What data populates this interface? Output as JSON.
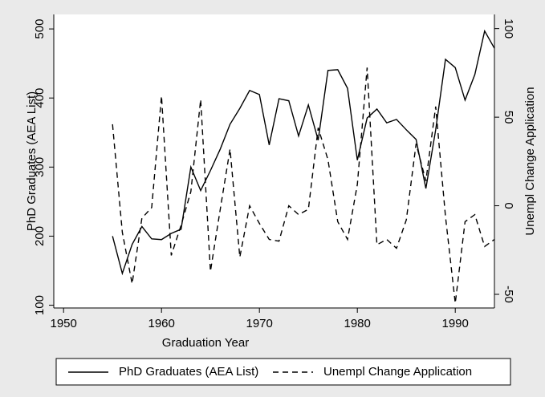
{
  "chart_data": {
    "type": "line",
    "x_label": "Graduation Year",
    "y_label": "PhD Graduates (AEA List)",
    "y2_label": "Unempl Change Application",
    "x": [
      1955,
      1956,
      1957,
      1958,
      1959,
      1960,
      1961,
      1962,
      1963,
      1964,
      1965,
      1966,
      1967,
      1968,
      1969,
      1970,
      1971,
      1972,
      1973,
      1974,
      1975,
      1976,
      1977,
      1978,
      1979,
      1980,
      1981,
      1982,
      1983,
      1984,
      1985,
      1986,
      1987,
      1988,
      1989,
      1990,
      1991,
      1992,
      1993,
      1994
    ],
    "series": [
      {
        "name": "PhD Graduates (AEA List)",
        "color": "#000000",
        "style": "solid",
        "values": [
          200,
          146,
          188,
          214,
          196,
          195,
          204,
          210,
          300,
          266,
          295,
          326,
          362,
          385,
          411,
          405,
          332,
          399,
          396,
          345,
          390,
          339,
          440,
          441,
          414,
          310,
          371,
          384,
          364,
          369,
          354,
          340,
          269,
          354,
          456,
          444,
          397,
          434,
          497,
          472
        ]
      },
      {
        "name": "Unempl Change Application",
        "color": "#000000",
        "style": "dashed",
        "axis": "y2",
        "values": [
          46,
          -15,
          -44,
          -7,
          -1,
          62,
          -28,
          -11,
          8,
          60,
          -37,
          -2,
          32,
          -29,
          0,
          -10,
          -19,
          -20,
          0,
          -5,
          -2,
          44,
          26,
          -9,
          -19,
          12,
          78,
          -22,
          -19,
          -24,
          -8,
          35,
          14,
          56,
          -6,
          -55,
          -9,
          -5,
          -23,
          -19
        ]
      }
    ],
    "xlim": [
      1949,
      1994
    ],
    "xticks": [
      1950,
      1960,
      1970,
      1980,
      1990
    ],
    "ylim": [
      96,
      521
    ],
    "yticks": [
      100,
      200,
      300,
      400,
      500
    ],
    "y2lim": [
      -57.7,
      108
    ],
    "y2ticks": [
      -50,
      0,
      50,
      100
    ],
    "legend": "bottom"
  }
}
